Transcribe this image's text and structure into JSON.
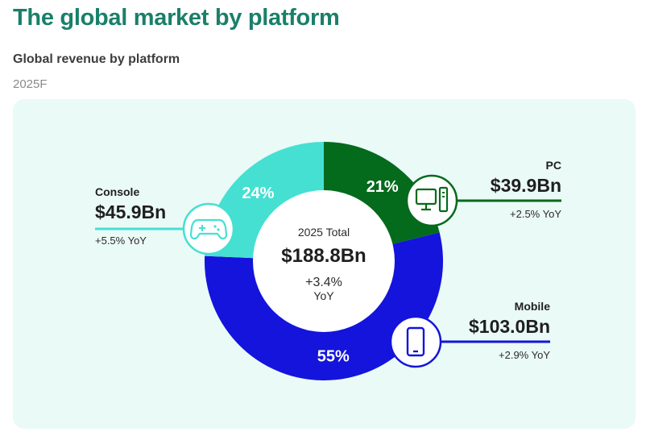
{
  "header": {
    "title": "The global market by platform",
    "subtitle": "Global revenue by platform",
    "period": "2025F"
  },
  "center": {
    "label": "2025 Total",
    "total": "$188.8Bn",
    "growth": "+3.4%",
    "growth_unit": "YoY"
  },
  "chart_data": {
    "type": "pie",
    "variant": "donut",
    "title": "Global revenue by platform",
    "period": "2025F",
    "unit": "USD Bn",
    "total": 188.8,
    "total_growth_yoy_pct": 3.4,
    "series": [
      {
        "name": "PC",
        "value": 39.9,
        "share_pct": 21,
        "share_label": "21%",
        "value_label": "$39.9Bn",
        "growth_label": "+2.5% YoY",
        "growth_yoy_pct": 2.5,
        "color": "#046a1c",
        "icon": "desktop-pc-icon"
      },
      {
        "name": "Mobile",
        "value": 103.0,
        "share_pct": 55,
        "share_label": "55%",
        "value_label": "$103.0Bn",
        "growth_label": "+2.9% YoY",
        "growth_yoy_pct": 2.9,
        "color": "#1414dc",
        "icon": "smartphone-icon"
      },
      {
        "name": "Console",
        "value": 45.9,
        "share_pct": 24,
        "share_label": "24%",
        "value_label": "$45.9Bn",
        "growth_label": "+5.5% YoY",
        "growth_yoy_pct": 5.5,
        "color": "#45e0d2",
        "icon": "gamepad-icon"
      }
    ]
  }
}
